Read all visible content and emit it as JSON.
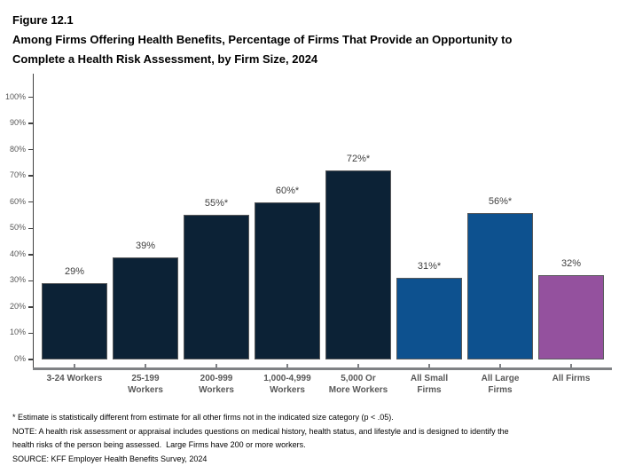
{
  "header": {
    "figure_label": "Figure 12.1",
    "title_line1": "Among Firms Offering Health Benefits, Percentage of Firms That Provide an Opportunity to",
    "title_line2": "Complete a Health Risk Assessment, by Firm Size, 2024"
  },
  "chart_data": {
    "type": "bar",
    "title": "Among Firms Offering Health Benefits, Percentage of Firms That Provide an Opportunity to Complete a Health Risk Assessment, by Firm Size, 2024",
    "figure_number": "Figure 12.1",
    "categories": [
      "3-24 Workers",
      "25-199 Workers",
      "200-999 Workers",
      "1,000-4,999 Workers",
      "5,000 Or More Workers",
      "All Small Firms",
      "All Large Firms",
      "All Firms"
    ],
    "category_lines": [
      [
        "3-24 Workers"
      ],
      [
        "25-199",
        "Workers"
      ],
      [
        "200-999",
        "Workers"
      ],
      [
        "1,000-4,999",
        "Workers"
      ],
      [
        "5,000 Or",
        "More Workers"
      ],
      [
        "All Small",
        "Firms"
      ],
      [
        "All Large",
        "Firms"
      ],
      [
        "All Firms"
      ]
    ],
    "values": [
      29,
      39,
      55,
      60,
      72,
      31,
      56,
      32
    ],
    "value_labels": [
      "29%",
      "39%",
      "55%*",
      "60%*",
      "72%*",
      "31%*",
      "56%*",
      "32%"
    ],
    "bar_colors": [
      "#0C2236",
      "#0C2236",
      "#0C2236",
      "#0C2236",
      "#0C2236",
      "#0D518F",
      "#0D518F",
      "#94519E"
    ],
    "bar_border_color": "#58595B",
    "xlabel": "",
    "ylabel": "",
    "ylim": [
      0,
      100
    ],
    "y_tick_labels": [
      "0%",
      "10%",
      "20%",
      "30%",
      "40%",
      "50%",
      "60%",
      "70%",
      "80%",
      "90%",
      "100%"
    ],
    "grid": false,
    "legend": false,
    "colors": {
      "small_firm_bars": "#0C2236",
      "all_small_large_bars": "#0D518F",
      "all_firms_bar": "#94519E",
      "y_axis_line": "#404040",
      "x_axis_line": "#808285",
      "tick_label": "#595959",
      "value_label": "#3F3F3F"
    }
  },
  "footer": {
    "lines": [
      "* Estimate is statistically different from estimate for all other firms not in the indicated size category (p < .05).",
      "NOTE: A health risk assessment or appraisal includes questions on medical history, health status, and lifestyle and is designed to identify the",
      "health risks of the person being assessed.  Large Firms have 200 or more workers.",
      "SOURCE: KFF Employer Health Benefits Survey, 2024"
    ]
  }
}
